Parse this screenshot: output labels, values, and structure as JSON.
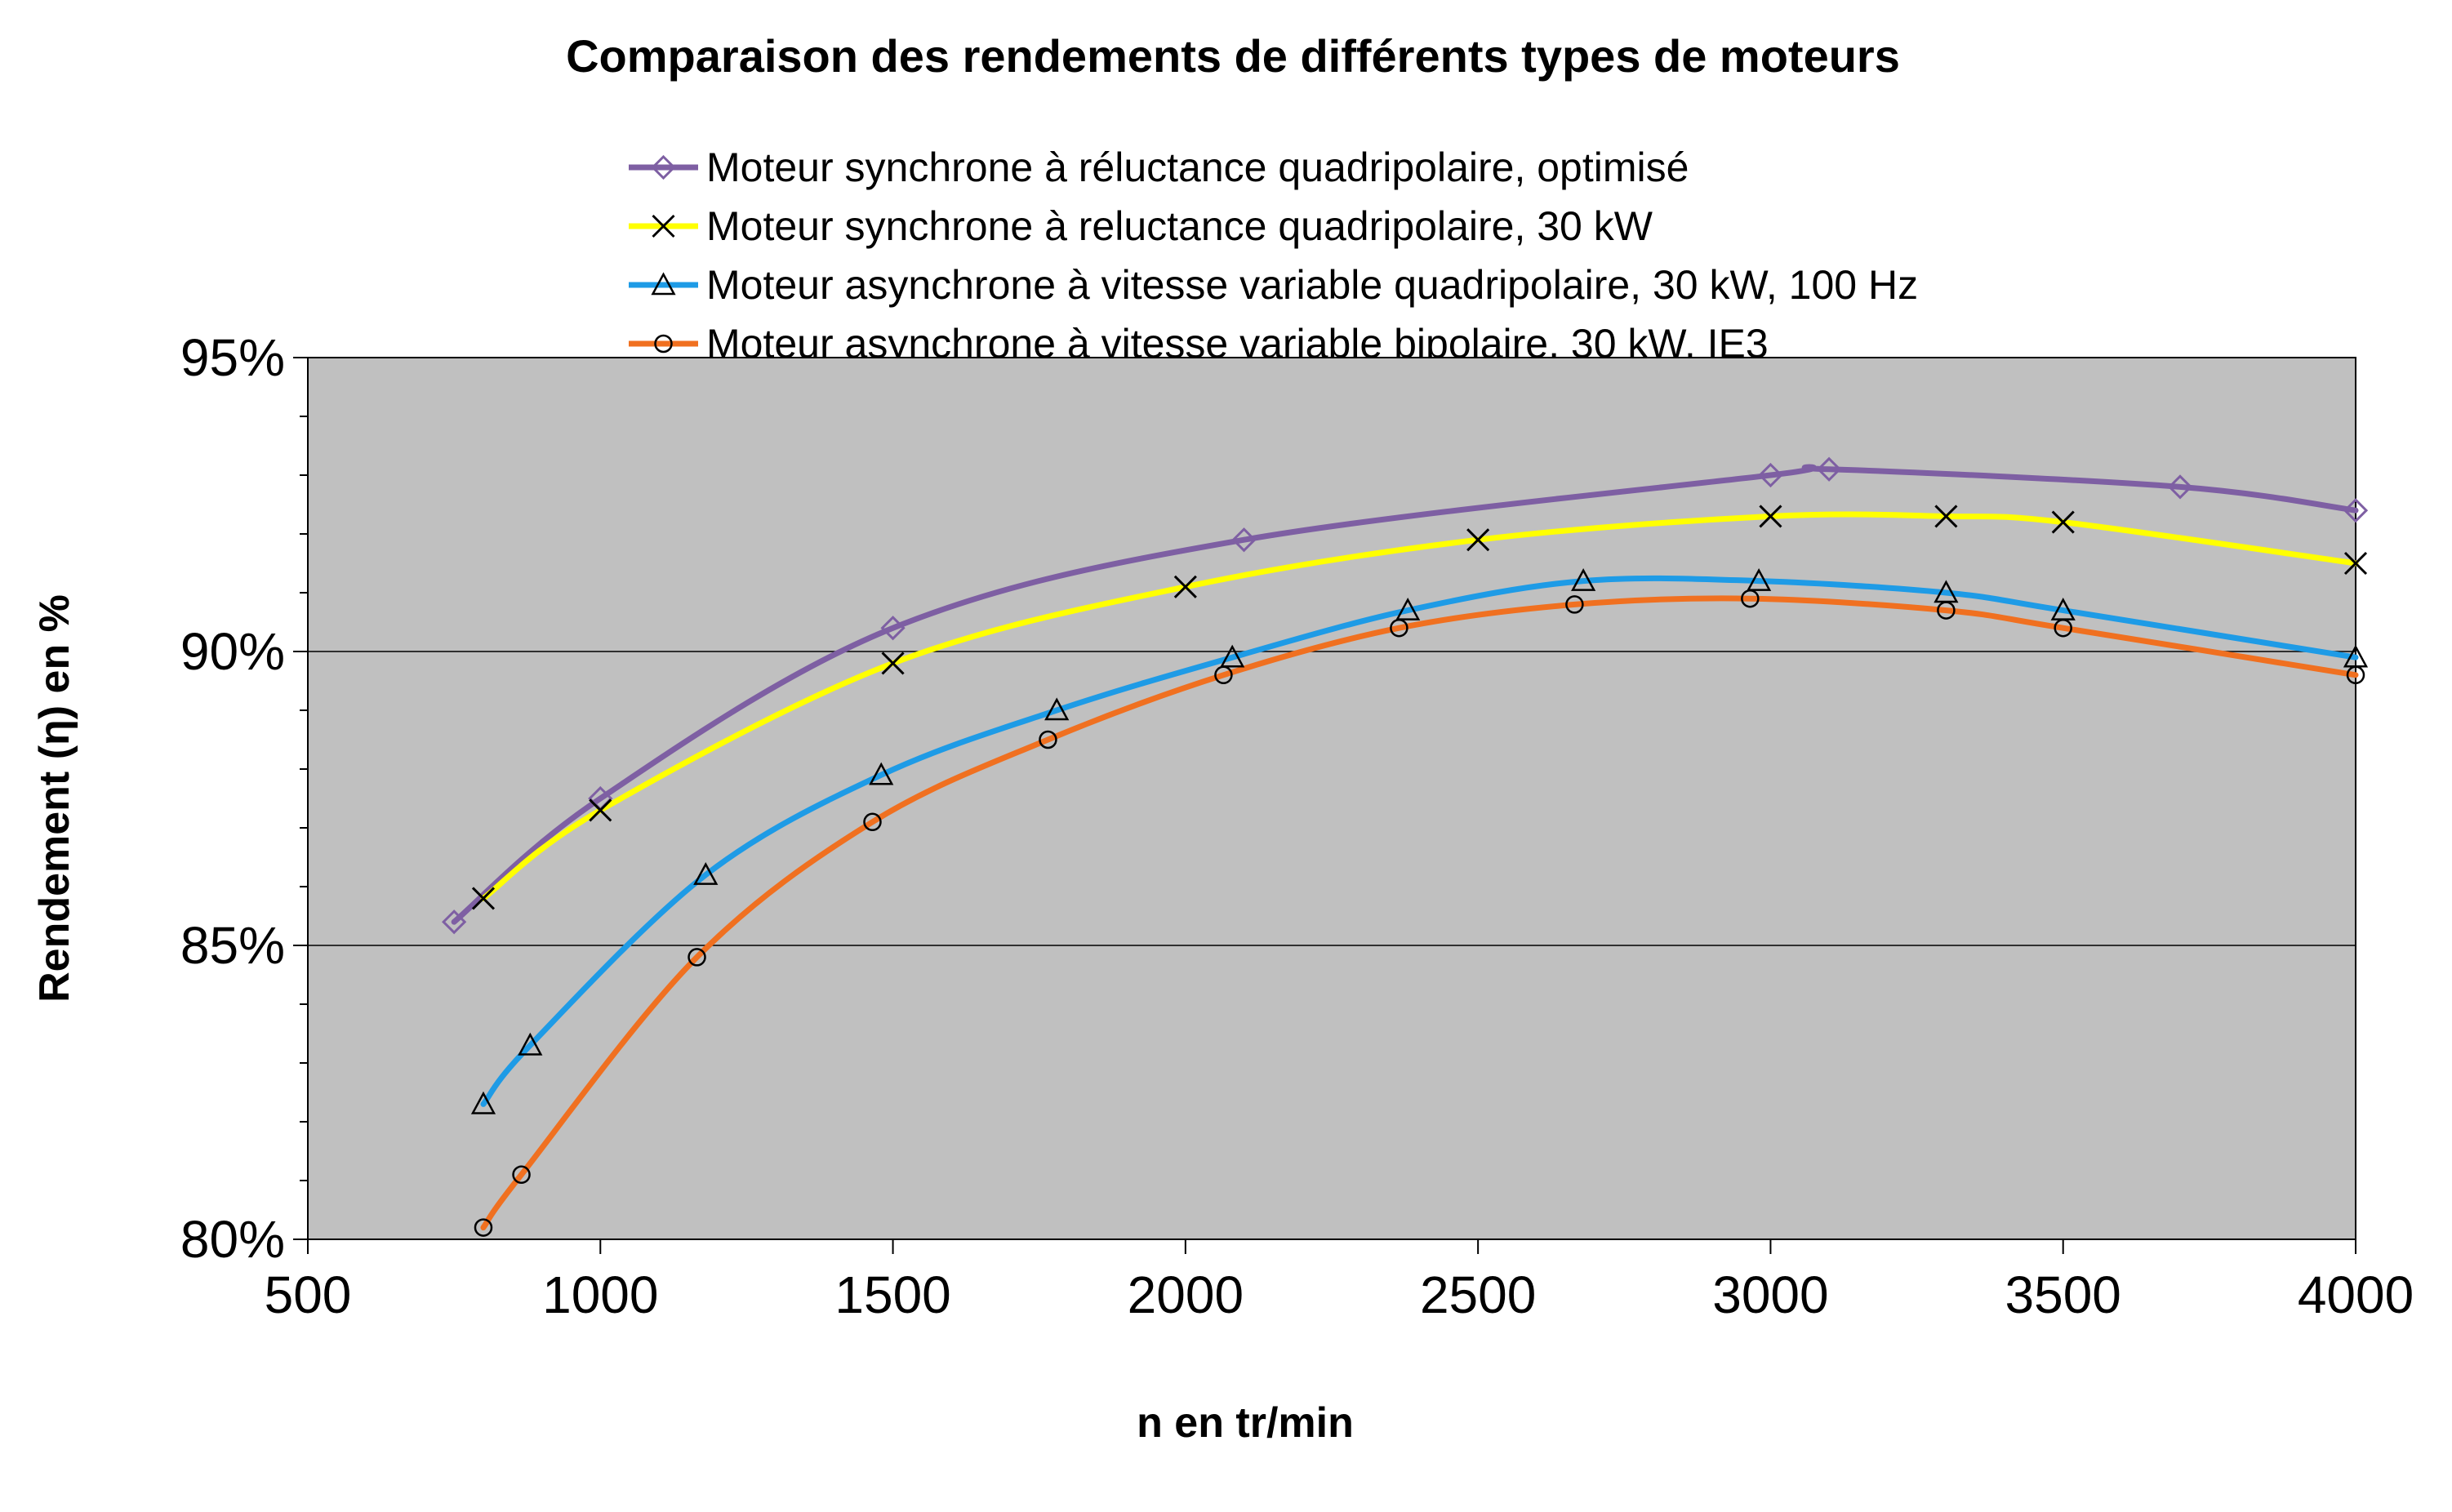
{
  "chart_data": {
    "type": "line",
    "title": "Comparaison des rendements de différents types de moteurs",
    "xlabel": "n en tr/min",
    "ylabel": "Rendement (η) en %",
    "xlim": [
      500,
      4000
    ],
    "ylim": [
      80,
      95
    ],
    "x_ticks": [
      500,
      1000,
      1500,
      2000,
      2500,
      3000,
      3500,
      4000
    ],
    "x_tick_labels": [
      "500",
      "1000",
      "1500",
      "2000",
      "2500",
      "3000",
      "3500",
      "4000"
    ],
    "y_ticks": [
      80,
      85,
      90,
      95
    ],
    "y_tick_labels": [
      "80%",
      "85%",
      "90%",
      "95%"
    ],
    "grid": "horizontal major gridlines",
    "plot_background": "#c0c0c0",
    "legend_position": "top",
    "series": [
      {
        "name": "Moteur synchrone à réluctance quadripolaire, optimisé",
        "color": "#7e5fa3",
        "marker": "diamond",
        "x": [
          750,
          1000,
          1500,
          2100,
          3000,
          3100,
          3700,
          4000
        ],
        "values": [
          85.4,
          87.5,
          90.4,
          91.9,
          93.0,
          93.1,
          92.8,
          92.4
        ]
      },
      {
        "name": "Moteur synchrone à reluctance quadripolaire, 30 kW",
        "color": "#ffff00",
        "marker": "x",
        "x": [
          800,
          1000,
          1500,
          2000,
          2500,
          3000,
          3300,
          3500,
          4000
        ],
        "values": [
          85.8,
          87.3,
          89.8,
          91.1,
          91.9,
          92.3,
          92.3,
          92.2,
          91.5
        ]
      },
      {
        "name": "Moteur asynchrone à vitesse variable quadripolaire, 30 kW, 100 Hz",
        "color": "#1e9be6",
        "marker": "triangle",
        "x": [
          800,
          880,
          1180,
          1480,
          1780,
          2080,
          2380,
          2680,
          2980,
          3300,
          3500,
          4000
        ],
        "values": [
          82.3,
          83.3,
          86.2,
          87.9,
          89.0,
          89.9,
          90.7,
          91.2,
          91.2,
          91.0,
          90.7,
          89.9
        ]
      },
      {
        "name": "Moteur asynchrone à vitesse variable bipolaire, 30 kW, IE3",
        "color": "#f07020",
        "marker": "circle",
        "x": [
          800,
          865,
          1165,
          1465,
          1765,
          2065,
          2365,
          2665,
          2965,
          3300,
          3500,
          4000
        ],
        "values": [
          80.2,
          81.1,
          84.8,
          87.1,
          88.5,
          89.6,
          90.4,
          90.8,
          90.9,
          90.7,
          90.4,
          89.6
        ]
      }
    ]
  }
}
